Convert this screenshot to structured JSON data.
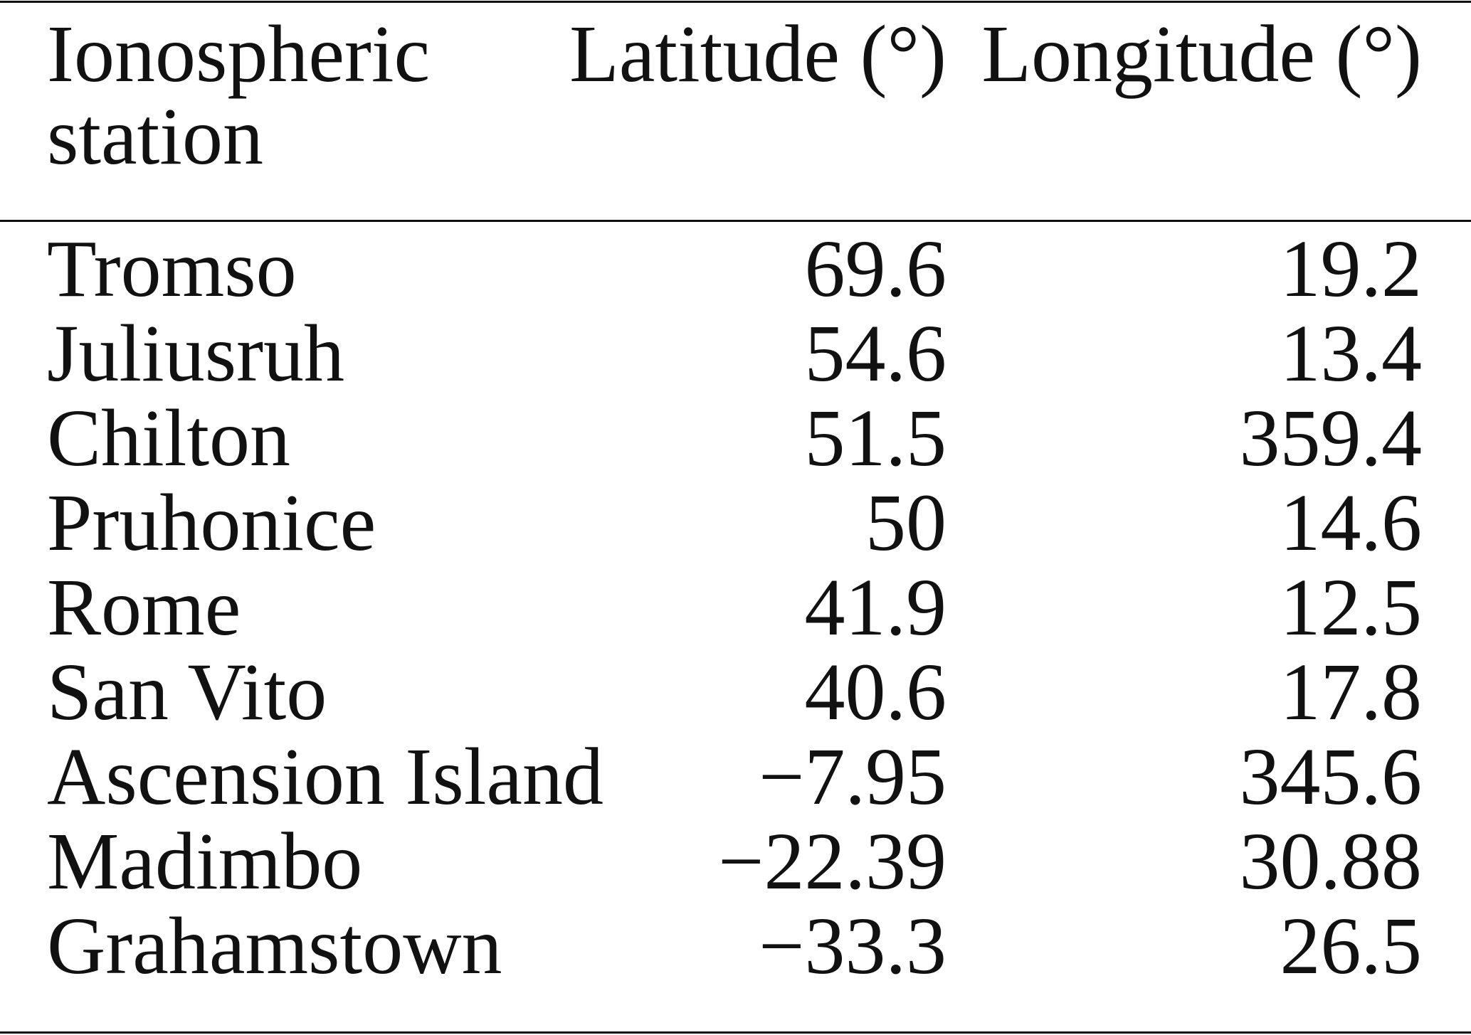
{
  "table": {
    "headers": [
      "Ionospheric station",
      "Latitude (°)",
      "Longitude (°)"
    ],
    "rows": [
      [
        "Tromso",
        "69.6",
        "19.2"
      ],
      [
        "Juliusruh",
        "54.6",
        "13.4"
      ],
      [
        "Chilton",
        "51.5",
        "359.4"
      ],
      [
        "Pruhonice",
        "50",
        "14.6"
      ],
      [
        "Rome",
        "41.9",
        "12.5"
      ],
      [
        "San Vito",
        "40.6",
        "17.8"
      ],
      [
        "Ascension Island",
        "−7.95",
        "345.6"
      ],
      [
        "Madimbo",
        "−22.39",
        "30.88"
      ],
      [
        "Grahamstown",
        "−33.3",
        "26.5"
      ]
    ]
  }
}
